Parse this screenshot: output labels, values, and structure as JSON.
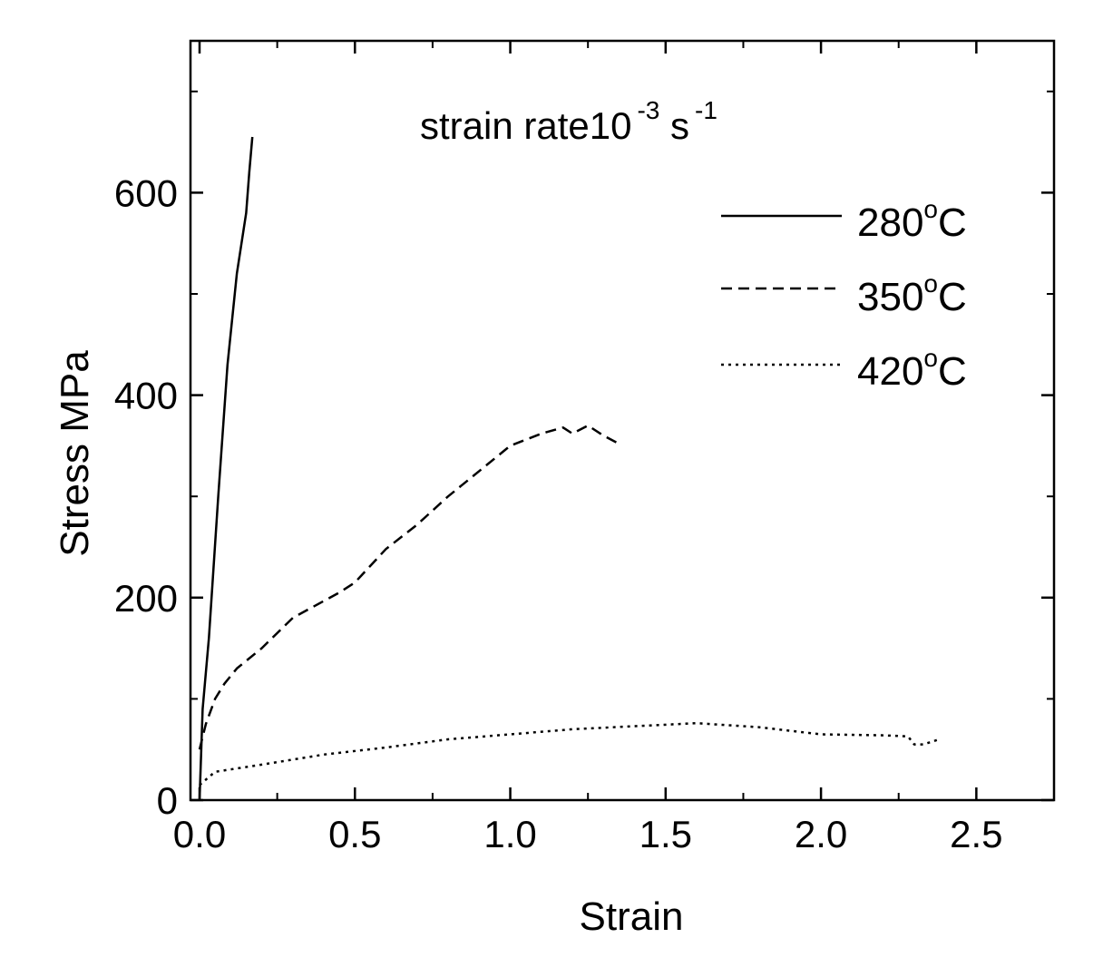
{
  "chart_data": {
    "type": "line",
    "title": "",
    "annotation": {
      "text": "strain rate10",
      "sup1": "-3",
      "mid": " s",
      "sup2": "-1"
    },
    "xlabel": "Strain",
    "ylabel": "Stress MPa",
    "xlim": [
      0,
      2.75
    ],
    "ylim": [
      0,
      750
    ],
    "xticks": [
      {
        "value": 0.0,
        "label": "0.0"
      },
      {
        "value": 0.5,
        "label": "0.5"
      },
      {
        "value": 1.0,
        "label": "1.0"
      },
      {
        "value": 1.5,
        "label": "1.5"
      },
      {
        "value": 2.0,
        "label": "2.0"
      },
      {
        "value": 2.5,
        "label": "2.5"
      }
    ],
    "yticks": [
      {
        "value": 0,
        "label": "0"
      },
      {
        "value": 200,
        "label": "200"
      },
      {
        "value": 400,
        "label": "400"
      },
      {
        "value": 600,
        "label": "600"
      }
    ],
    "grid": false,
    "legend_position": "top-right",
    "series": [
      {
        "name": "280°C",
        "label_main": "280",
        "label_sup": "o",
        "label_end": "C",
        "style": "solid",
        "x": [
          0.0,
          0.01,
          0.03,
          0.06,
          0.09,
          0.12,
          0.15,
          0.16,
          0.17
        ],
        "y": [
          0,
          90,
          160,
          300,
          430,
          520,
          580,
          620,
          655
        ]
      },
      {
        "name": "350°C",
        "label_main": "350",
        "label_sup": "o",
        "label_end": "C",
        "style": "dashed",
        "x": [
          0.0,
          0.02,
          0.05,
          0.08,
          0.12,
          0.2,
          0.3,
          0.45,
          0.5,
          0.6,
          0.7,
          0.8,
          0.9,
          1.0,
          1.1,
          1.17,
          1.2,
          1.25,
          1.3,
          1.35
        ],
        "y": [
          50,
          75,
          100,
          115,
          130,
          150,
          180,
          205,
          215,
          248,
          272,
          300,
          325,
          350,
          362,
          368,
          362,
          370,
          360,
          352
        ]
      },
      {
        "name": "420°C",
        "label_main": "420",
        "label_sup": "o",
        "label_end": "C",
        "style": "dotted",
        "x": [
          0.0,
          0.05,
          0.2,
          0.4,
          0.6,
          0.8,
          1.0,
          1.2,
          1.4,
          1.6,
          1.8,
          2.0,
          2.2,
          2.28,
          2.3,
          2.33,
          2.36,
          2.38
        ],
        "y": [
          15,
          28,
          35,
          45,
          52,
          60,
          65,
          70,
          73,
          76,
          72,
          65,
          64,
          63,
          55,
          55,
          58,
          60
        ]
      }
    ]
  }
}
